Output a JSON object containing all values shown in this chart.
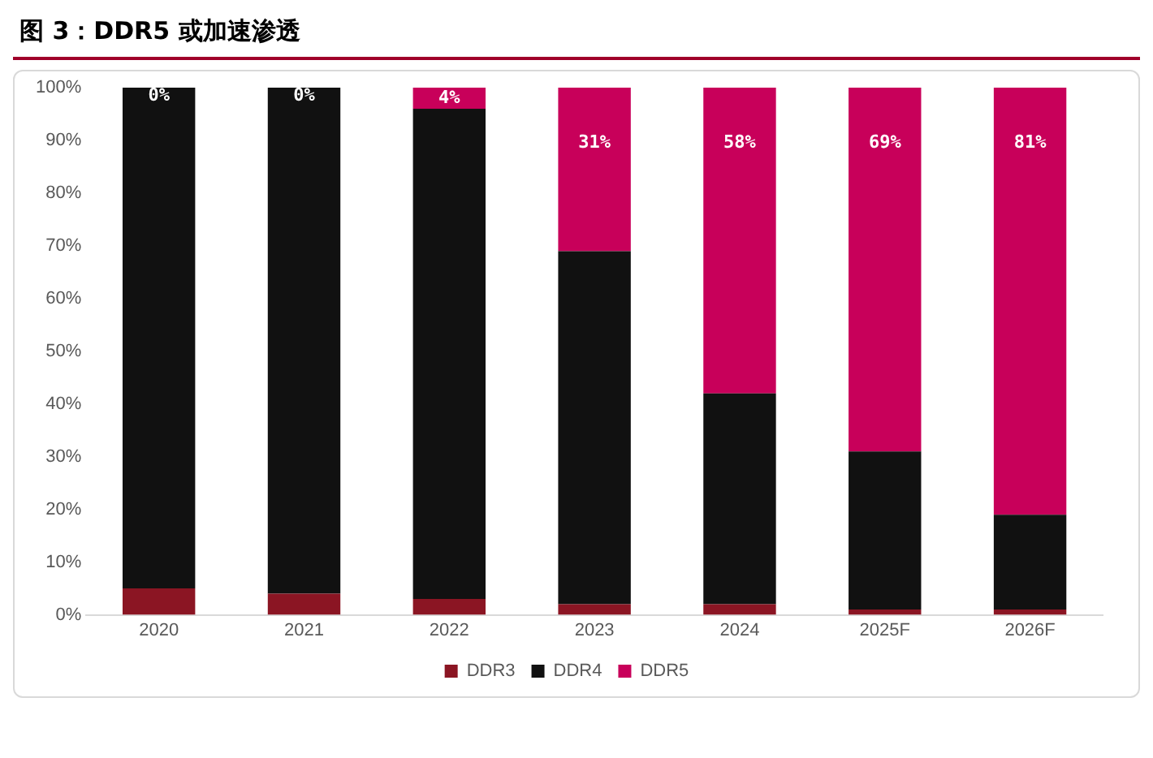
{
  "chart_data": {
    "type": "bar",
    "title": "图 3：DDR5 或加速渗透",
    "categories": [
      "2020",
      "2021",
      "2022",
      "2023",
      "2024",
      "2025F",
      "2026F"
    ],
    "stacked": true,
    "series": [
      {
        "name": "DDR3",
        "color": "#8b1523",
        "values": [
          5,
          4,
          3,
          2,
          2,
          1,
          1
        ]
      },
      {
        "name": "DDR4",
        "color": "#111111",
        "values": [
          95,
          96,
          93,
          67,
          40,
          30,
          18
        ]
      },
      {
        "name": "DDR5",
        "color": "#c8005a",
        "values": [
          0,
          0,
          4,
          31,
          58,
          69,
          81
        ],
        "value_labels": [
          "0%",
          "0%",
          "4%",
          "31%",
          "58%",
          "69%",
          "81%"
        ]
      }
    ],
    "ylim": [
      0,
      100
    ],
    "yticks": [
      {
        "value": 0,
        "label": "0%"
      },
      {
        "value": 10,
        "label": "10%"
      },
      {
        "value": 20,
        "label": "20%"
      },
      {
        "value": 30,
        "label": "30%"
      },
      {
        "value": 40,
        "label": "40%"
      },
      {
        "value": 50,
        "label": "50%"
      },
      {
        "value": 60,
        "label": "60%"
      },
      {
        "value": 70,
        "label": "70%"
      },
      {
        "value": 80,
        "label": "80%"
      },
      {
        "value": 90,
        "label": "90%"
      },
      {
        "value": 100,
        "label": "100%"
      }
    ],
    "grid": false,
    "legend": "bottom"
  }
}
